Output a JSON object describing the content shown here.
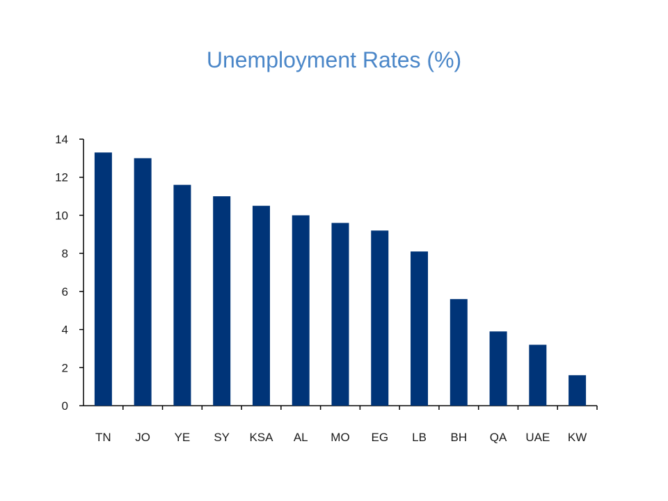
{
  "title": "Unemployment Rates (%)",
  "colors": {
    "bar": "#003478",
    "title": "#4a86c8",
    "axis": "#000000"
  },
  "chart_data": {
    "type": "bar",
    "title": "Unemployment Rates (%)",
    "xlabel": "",
    "ylabel": "",
    "categories": [
      "TN",
      "JO",
      "YE",
      "SY",
      "KSA",
      "AL",
      "MO",
      "EG",
      "LB",
      "BH",
      "QA",
      "UAE",
      "KW"
    ],
    "values": [
      13.3,
      13.0,
      11.6,
      11.0,
      10.5,
      10.0,
      9.6,
      9.2,
      8.1,
      5.6,
      3.9,
      3.2,
      1.6
    ],
    "ylim": [
      0,
      14
    ],
    "yticks": [
      "0",
      "2",
      "4",
      "6",
      "8",
      "10",
      "12",
      "14"
    ],
    "grid": false,
    "legend": "none"
  }
}
